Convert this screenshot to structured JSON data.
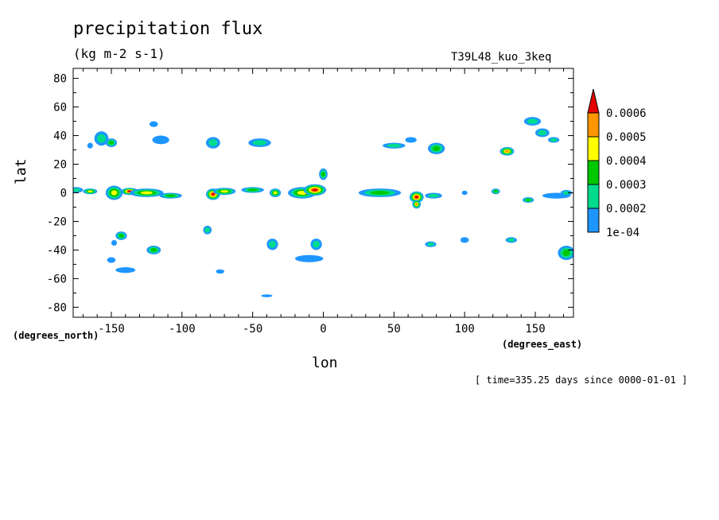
{
  "chart_data": {
    "type": "heatmap",
    "title": "precipitation flux",
    "units": "(kg m-2 s-1)",
    "run_label": "T39L48_kuo_3keq",
    "xlabel": "lon",
    "ylabel": "lat",
    "x_units": "(degrees_east)",
    "y_units": "(degrees_north)",
    "xlim": [
      -177,
      177
    ],
    "ylim": [
      -87,
      87
    ],
    "x_ticks": [
      -150,
      -100,
      -50,
      0,
      50,
      100,
      150
    ],
    "y_ticks": [
      80,
      60,
      40,
      20,
      0,
      -20,
      -40,
      -60,
      -80
    ],
    "x_tick_labels": [
      "-150",
      "-100",
      "-50",
      "0",
      "50",
      "100",
      "150"
    ],
    "y_tick_labels": [
      "80",
      "60",
      "40",
      "20",
      "0",
      "-20",
      "-40",
      "-60",
      "-80"
    ],
    "time_label": "[ time=335.25 days since 0000-01-01 ]",
    "colorbar": {
      "levels": [
        0.0001,
        0.0002,
        0.0003,
        0.0004,
        0.0005,
        0.0006
      ],
      "labels": [
        "1e-04",
        "0.0002",
        "0.0003",
        "0.0004",
        "0.0005",
        "0.0006"
      ],
      "colors": [
        "#1e96ff",
        "#00dc8c",
        "#00c800",
        "#ffff00",
        "#ff9600",
        "#e60000"
      ],
      "extend": "max"
    },
    "features": [
      {
        "lon": -175,
        "lat": 2,
        "rx": 5,
        "ry": 2,
        "value": 0.00025
      },
      {
        "lon": -165,
        "lat": 1,
        "rx": 5,
        "ry": 2,
        "value": 0.0004
      },
      {
        "lon": -148,
        "lat": 0,
        "rx": 6,
        "ry": 5,
        "value": 0.00045
      },
      {
        "lon": -137,
        "lat": 1,
        "rx": 6,
        "ry": 2.5,
        "value": 0.00065
      },
      {
        "lon": -125,
        "lat": 0,
        "rx": 12,
        "ry": 3,
        "value": 0.0004
      },
      {
        "lon": -108,
        "lat": -2,
        "rx": 8,
        "ry": 2,
        "value": 0.00035
      },
      {
        "lon": -78,
        "lat": -1,
        "rx": 5,
        "ry": 4,
        "value": 0.00065
      },
      {
        "lon": -70,
        "lat": 1,
        "rx": 8,
        "ry": 2.5,
        "value": 0.0004
      },
      {
        "lon": -50,
        "lat": 2,
        "rx": 8,
        "ry": 2,
        "value": 0.0003
      },
      {
        "lon": -34,
        "lat": 0,
        "rx": 4,
        "ry": 3,
        "value": 0.0004
      },
      {
        "lon": -15,
        "lat": 0,
        "rx": 10,
        "ry": 4,
        "value": 0.0004
      },
      {
        "lon": -6,
        "lat": 2,
        "rx": 8,
        "ry": 4,
        "value": 0.00065
      },
      {
        "lon": 0,
        "lat": 13,
        "rx": 3,
        "ry": 4,
        "value": 0.0003
      },
      {
        "lon": 40,
        "lat": 0,
        "rx": 15,
        "ry": 3,
        "value": 0.0003
      },
      {
        "lon": 66,
        "lat": -3,
        "rx": 5,
        "ry": 4,
        "value": 0.00065
      },
      {
        "lon": 66,
        "lat": -8,
        "rx": 3,
        "ry": 3,
        "value": 0.00055
      },
      {
        "lon": 78,
        "lat": -2,
        "rx": 6,
        "ry": 2,
        "value": 0.0002
      },
      {
        "lon": 100,
        "lat": 0,
        "rx": 2,
        "ry": 1.5,
        "value": 0.00015
      },
      {
        "lon": 122,
        "lat": 1,
        "rx": 3,
        "ry": 2,
        "value": 0.00035
      },
      {
        "lon": 145,
        "lat": -5,
        "rx": 4,
        "ry": 2,
        "value": 0.0003
      },
      {
        "lon": 165,
        "lat": -2,
        "rx": 10,
        "ry": 2,
        "value": 0.00015
      },
      {
        "lon": 172,
        "lat": 0,
        "rx": 4,
        "ry": 2,
        "value": 0.0002
      },
      {
        "lon": -157,
        "lat": 38,
        "rx": 5,
        "ry": 5,
        "value": 0.0002
      },
      {
        "lon": -150,
        "lat": 35,
        "rx": 4,
        "ry": 3,
        "value": 0.0003
      },
      {
        "lon": -165,
        "lat": 33,
        "rx": 2,
        "ry": 2,
        "value": 0.00015
      },
      {
        "lon": -115,
        "lat": 37,
        "rx": 6,
        "ry": 3,
        "value": 0.00015
      },
      {
        "lon": -78,
        "lat": 35,
        "rx": 5,
        "ry": 4,
        "value": 0.00025
      },
      {
        "lon": -45,
        "lat": 35,
        "rx": 8,
        "ry": 3,
        "value": 0.0002
      },
      {
        "lon": 50,
        "lat": 33,
        "rx": 8,
        "ry": 2,
        "value": 0.0002
      },
      {
        "lon": 62,
        "lat": 37,
        "rx": 4,
        "ry": 2,
        "value": 0.00015
      },
      {
        "lon": 80,
        "lat": 31,
        "rx": 6,
        "ry": 4,
        "value": 0.00035
      },
      {
        "lon": 130,
        "lat": 29,
        "rx": 5,
        "ry": 3,
        "value": 0.00055
      },
      {
        "lon": 148,
        "lat": 50,
        "rx": 6,
        "ry": 3,
        "value": 0.0002
      },
      {
        "lon": 155,
        "lat": 42,
        "rx": 5,
        "ry": 3,
        "value": 0.0002
      },
      {
        "lon": 163,
        "lat": 37,
        "rx": 4,
        "ry": 2,
        "value": 0.0002
      },
      {
        "lon": -120,
        "lat": 48,
        "rx": 3,
        "ry": 2,
        "value": 0.00015
      },
      {
        "lon": -143,
        "lat": -30,
        "rx": 4,
        "ry": 3,
        "value": 0.0003
      },
      {
        "lon": -120,
        "lat": -40,
        "rx": 5,
        "ry": 3,
        "value": 0.0003
      },
      {
        "lon": -148,
        "lat": -35,
        "rx": 2,
        "ry": 2,
        "value": 0.00015
      },
      {
        "lon": -140,
        "lat": -54,
        "rx": 7,
        "ry": 2,
        "value": 0.00015
      },
      {
        "lon": -150,
        "lat": -47,
        "rx": 3,
        "ry": 2,
        "value": 0.00015
      },
      {
        "lon": -82,
        "lat": -26,
        "rx": 3,
        "ry": 3,
        "value": 0.0002
      },
      {
        "lon": -36,
        "lat": -36,
        "rx": 4,
        "ry": 4,
        "value": 0.00025
      },
      {
        "lon": -5,
        "lat": -36,
        "rx": 4,
        "ry": 4,
        "value": 0.00025
      },
      {
        "lon": -10,
        "lat": -46,
        "rx": 10,
        "ry": 2.5,
        "value": 0.00015
      },
      {
        "lon": 76,
        "lat": -36,
        "rx": 4,
        "ry": 2,
        "value": 0.0002
      },
      {
        "lon": 133,
        "lat": -33,
        "rx": 4,
        "ry": 2,
        "value": 0.00025
      },
      {
        "lon": 172,
        "lat": -42,
        "rx": 6,
        "ry": 5,
        "value": 0.0003
      },
      {
        "lon": -73,
        "lat": -55,
        "rx": 3,
        "ry": 1.5,
        "value": 0.00015
      },
      {
        "lon": -40,
        "lat": -72,
        "rx": 4,
        "ry": 1,
        "value": 0.00015
      },
      {
        "lon": 100,
        "lat": -33,
        "rx": 3,
        "ry": 2,
        "value": 0.00015
      }
    ]
  }
}
